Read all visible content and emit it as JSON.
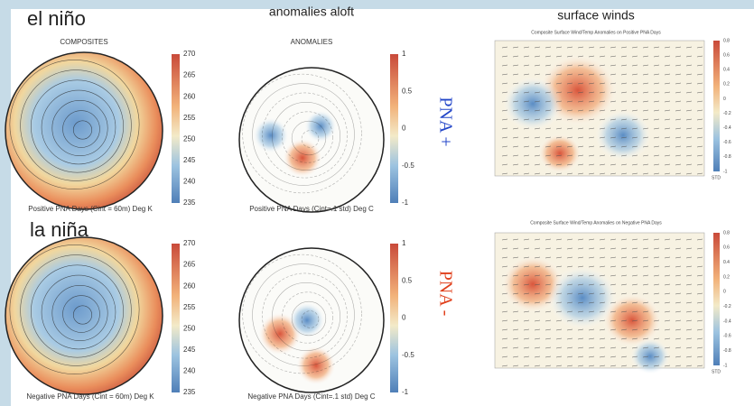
{
  "headings": {
    "el_nino": "el niño",
    "la_nina": "la niña",
    "anomalies_aloft": "anomalies aloft",
    "surface_winds": "surface winds",
    "pna_plus": "PNA +",
    "pna_minus": "PNA -"
  },
  "panels": [
    {
      "title": "COMPOSITES",
      "caption": "Positive PNA Days (Cint = 60m)  Deg K",
      "colorbar_ticks": [
        "270",
        "265",
        "260",
        "255",
        "250",
        "245",
        "240",
        "235"
      ]
    },
    {
      "title": "ANOMALIES",
      "caption": "Positive PNA Days (Cint=.1 std)  Deg C",
      "colorbar_ticks": [
        "1",
        "0.5",
        "0",
        "-0.5",
        "-1"
      ]
    },
    {
      "caption": "Negative PNA Days (Cint = 60m)  Deg K",
      "colorbar_ticks": [
        "270",
        "265",
        "260",
        "255",
        "250",
        "245",
        "240",
        "235"
      ]
    },
    {
      "caption": "Negative PNA Days (Cint=.1 std)  Deg C",
      "colorbar_ticks": [
        "1",
        "0.5",
        "0",
        "-0.5",
        "-1"
      ]
    },
    {
      "title": "Composite Surface Wind/Temp Anomalies on Positive PNA Days",
      "colorbar_ticks": [
        "0.8",
        "0.6",
        "0.4",
        "0.2",
        "0",
        "-0.2",
        "-0.4",
        "-0.6",
        "-0.8",
        "-1"
      ],
      "unit": "STD"
    },
    {
      "title": "Composite Surface Wind/Temp Anomalies on Negative PNA Days",
      "colorbar_ticks": [
        "0.8",
        "0.6",
        "0.4",
        "0.2",
        "0",
        "-0.2",
        "-0.4",
        "-0.6",
        "-0.8",
        "-1"
      ],
      "unit": "STD"
    }
  ]
}
